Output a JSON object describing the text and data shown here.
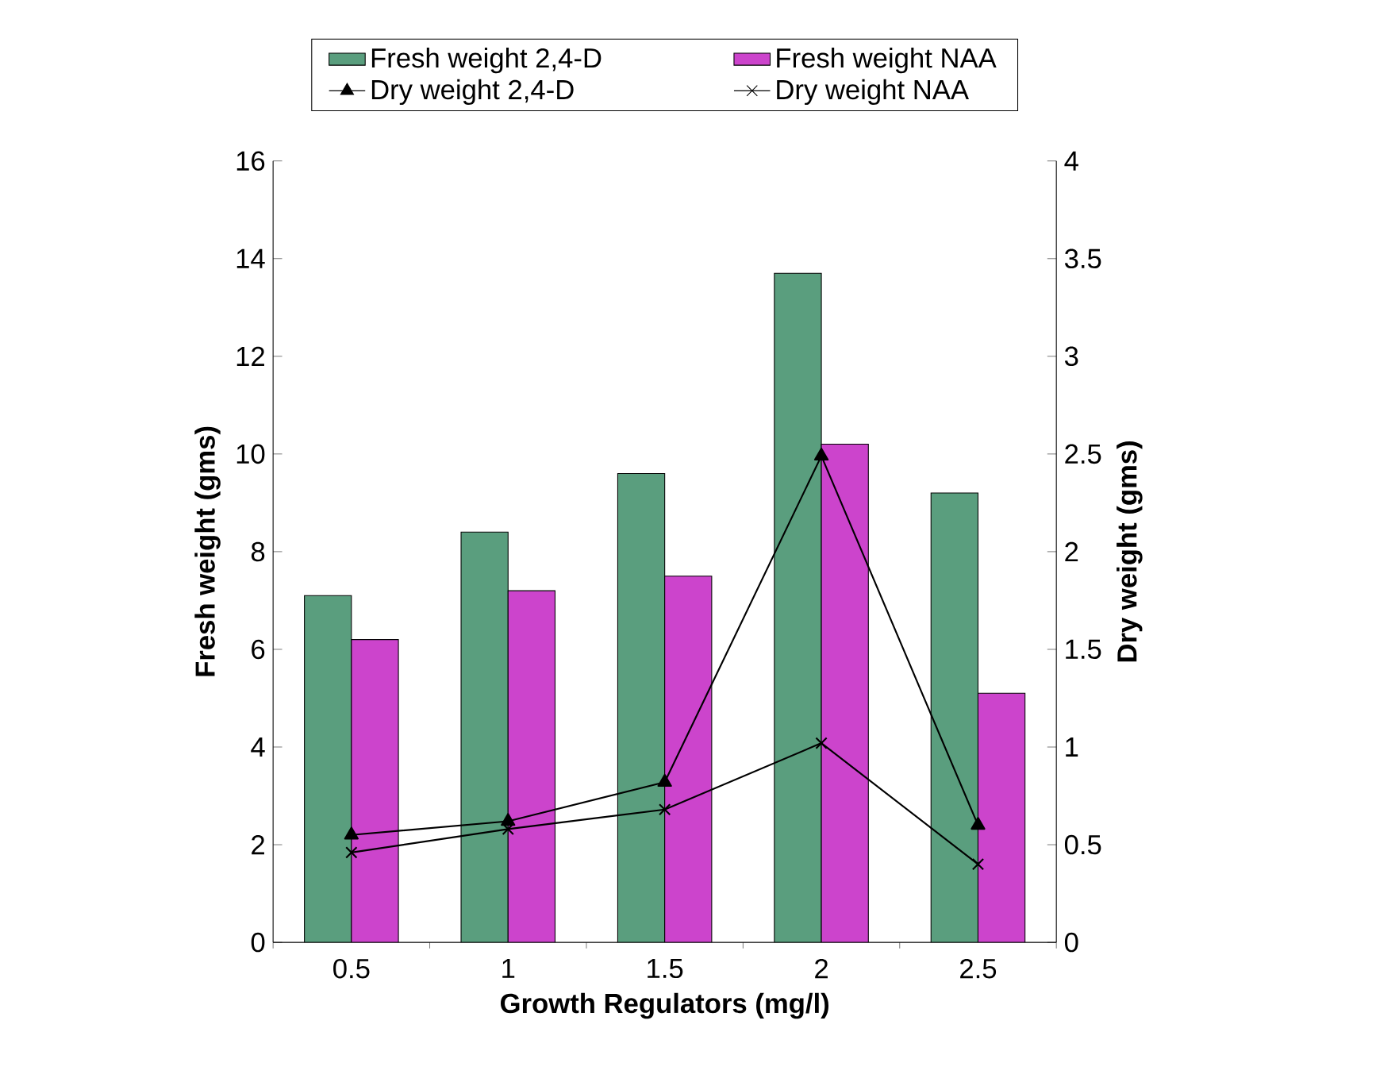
{
  "chart_data": {
    "type": "bar",
    "xlabel": "Growth Regulators (mg/l)",
    "ylabel": "Fresh weight (gms)",
    "y2label": "Dry weight (gms)",
    "categories": [
      "0.5",
      "1",
      "1.5",
      "2",
      "2.5"
    ],
    "series": [
      {
        "name": "Fresh weight 2,4-D",
        "color": "#5a9e7e",
        "values": [
          7.1,
          8.4,
          9.6,
          13.7,
          9.2
        ]
      },
      {
        "name": "Fresh weight NAA",
        "color": "#cc44cc",
        "values": [
          6.2,
          7.2,
          7.5,
          10.2,
          5.1
        ]
      },
      {
        "name": "Dry weight 2,4-D",
        "type": "line",
        "axis": "y2",
        "color": "#000000",
        "marker": "triangle",
        "values": [
          0.55,
          0.62,
          0.82,
          2.49,
          0.6
        ]
      },
      {
        "name": "Dry weight NAA",
        "type": "line",
        "axis": "y2",
        "color": "#000000",
        "marker": "cross",
        "values": [
          0.46,
          0.58,
          0.68,
          1.02,
          0.4
        ]
      }
    ],
    "ylim": [
      0,
      16
    ],
    "yticks": [
      0,
      2,
      4,
      6,
      8,
      10,
      12,
      14,
      16
    ],
    "y2lim": [
      0,
      4
    ],
    "y2ticks": [
      0,
      0.5,
      1,
      1.5,
      2,
      2.5,
      3,
      3.5,
      4
    ],
    "legend": "top"
  }
}
